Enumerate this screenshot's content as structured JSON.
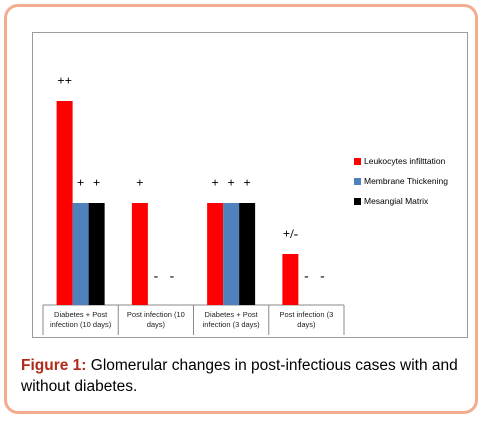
{
  "chart_data": {
    "type": "bar",
    "categories": [
      [
        "Diabetes + Post",
        "infection (10 days)"
      ],
      [
        "Post infection (10",
        "days)"
      ],
      [
        "Diabetes + Post",
        "infection (3 days)"
      ],
      [
        "Post infection (3",
        "days)"
      ]
    ],
    "series": [
      {
        "name": "Leukocytes infilttation",
        "color": "#ff0000",
        "values": [
          2,
          1,
          1,
          0.5
        ],
        "labels": [
          "++",
          "+",
          "+",
          "+/-"
        ]
      },
      {
        "name": "Membrane Thickening",
        "color": "#4f81bd",
        "values": [
          1,
          0,
          1,
          0
        ],
        "labels": [
          "+",
          "-",
          "+",
          "-"
        ]
      },
      {
        "name": "Mesangial Matrix",
        "color": "#000000",
        "values": [
          1,
          0,
          1,
          0
        ],
        "labels": [
          "+",
          "-",
          "+",
          "-"
        ]
      }
    ],
    "ylim": [
      0,
      2.1
    ],
    "grid": false,
    "legend_position": "right"
  },
  "caption": {
    "label": "Figure 1:",
    "text": " Glomerular changes in post-infectious cases with and without diabetes."
  }
}
